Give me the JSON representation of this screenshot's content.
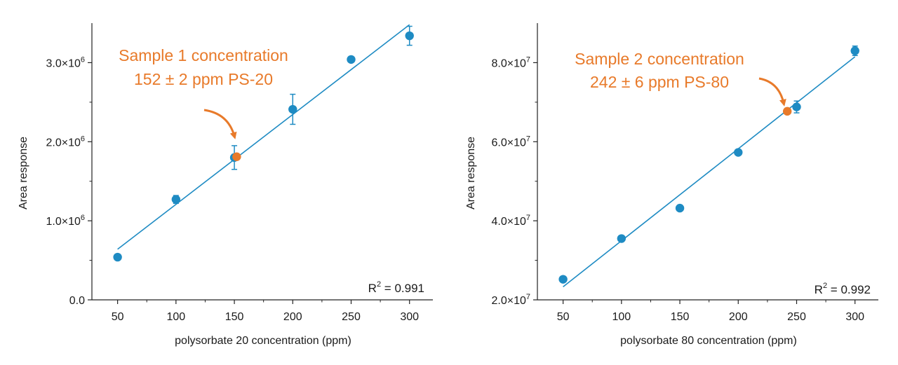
{
  "colors": {
    "point": "#1e8bc3",
    "line": "#1e8bc3",
    "sample": "#e87a2a",
    "axis": "#222222"
  },
  "chart_data": [
    {
      "type": "scatter",
      "xlabel": "polysorbate 20 concentration (ppm)",
      "ylabel": "Area response",
      "xlim": [
        28,
        320
      ],
      "ylim": [
        0,
        3500000
      ],
      "xticks": [
        50,
        100,
        150,
        200,
        250,
        300
      ],
      "xtick_labels": [
        "50",
        "100",
        "150",
        "200",
        "250",
        "300"
      ],
      "yticks": [
        0,
        1000000,
        2000000,
        3000000
      ],
      "ytick_mantissa": [
        "0.0",
        "1.0×10",
        "2.0×10",
        "3.0×10"
      ],
      "ytick_exponent": [
        "",
        "6",
        "6",
        "6"
      ],
      "series": [
        {
          "name": "calibration",
          "x": [
            50,
            100,
            150,
            200,
            250,
            300
          ],
          "y": [
            540000,
            1270000,
            1800000,
            2410000,
            3040000,
            3340000
          ],
          "yerr": [
            0,
            50000,
            150000,
            190000,
            0,
            120000
          ]
        }
      ],
      "fit_line": {
        "x": [
          50,
          300
        ],
        "y": [
          640000,
          3480000
        ]
      },
      "sample": {
        "x": 152,
        "y": 1810000,
        "label_line1": "Sample 1 concentration",
        "label_line2": "152 ± 2 ppm PS-20"
      },
      "r2": {
        "prefix": "R",
        "sup": "2",
        "value": " = 0.991"
      }
    },
    {
      "type": "scatter",
      "xlabel": "polysorbate 80 concentration (ppm)",
      "ylabel": "Area response",
      "xlim": [
        28,
        320
      ],
      "ylim": [
        20000000,
        90000000
      ],
      "xticks": [
        50,
        100,
        150,
        200,
        250,
        300
      ],
      "xtick_labels": [
        "50",
        "100",
        "150",
        "200",
        "250",
        "300"
      ],
      "yticks": [
        20000000,
        40000000,
        60000000,
        80000000
      ],
      "ytick_mantissa": [
        "2.0×10",
        "4.0×10",
        "6.0×10",
        "8.0×10"
      ],
      "ytick_exponent": [
        "7",
        "7",
        "7",
        "7"
      ],
      "series": [
        {
          "name": "calibration",
          "x": [
            50,
            100,
            150,
            200,
            250,
            300
          ],
          "y": [
            25200000,
            35500000,
            43200000,
            57300000,
            68800000,
            83000000
          ],
          "yerr": [
            0,
            0,
            0,
            0,
            1500000,
            1200000
          ]
        }
      ],
      "fit_line": {
        "x": [
          50,
          300
        ],
        "y": [
          23300000,
          81500000
        ]
      },
      "sample": {
        "x": 242,
        "y": 67700000,
        "label_line1": "Sample 2 concentration",
        "label_line2": "242 ± 6 ppm PS-80"
      },
      "r2": {
        "prefix": "R",
        "sup": "2",
        "value": " = 0.992"
      }
    }
  ]
}
